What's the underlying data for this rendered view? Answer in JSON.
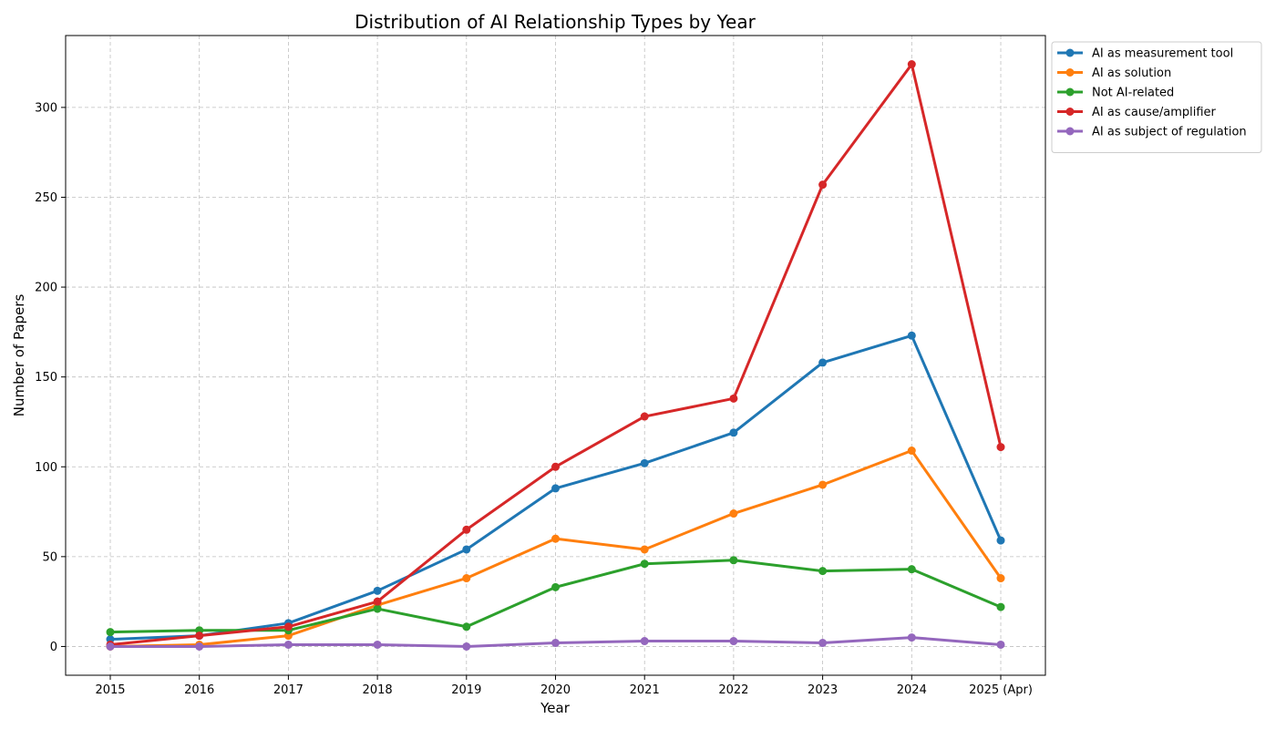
{
  "chart_data": {
    "type": "line",
    "title": "Distribution of AI Relationship Types by Year",
    "xlabel": "Year",
    "ylabel": "Number of Papers",
    "categories": [
      "2015",
      "2016",
      "2017",
      "2018",
      "2019",
      "2020",
      "2021",
      "2022",
      "2023",
      "2024",
      "2025 (Apr)"
    ],
    "ylim": [
      -16,
      340
    ],
    "yticks": [
      0,
      50,
      100,
      150,
      200,
      250,
      300
    ],
    "grid": true,
    "legend_position": "outside-top-right",
    "series": [
      {
        "name": "AI as measurement tool",
        "color": "#1f77b4",
        "values": [
          4,
          6,
          13,
          31,
          54,
          88,
          102,
          119,
          158,
          173,
          59
        ]
      },
      {
        "name": "AI as solution",
        "color": "#ff7f0e",
        "values": [
          0,
          1,
          6,
          23,
          38,
          60,
          54,
          74,
          90,
          109,
          38
        ]
      },
      {
        "name": "Not AI-related",
        "color": "#2ca02c",
        "values": [
          8,
          9,
          9,
          21,
          11,
          33,
          46,
          48,
          42,
          43,
          22
        ]
      },
      {
        "name": "AI as cause/amplifier",
        "color": "#d62728",
        "values": [
          1,
          6,
          11,
          25,
          65,
          100,
          128,
          138,
          257,
          324,
          111
        ]
      },
      {
        "name": "AI as subject of regulation",
        "color": "#9467bd",
        "values": [
          0,
          0,
          1,
          1,
          0,
          2,
          3,
          3,
          2,
          5,
          1
        ]
      }
    ]
  }
}
